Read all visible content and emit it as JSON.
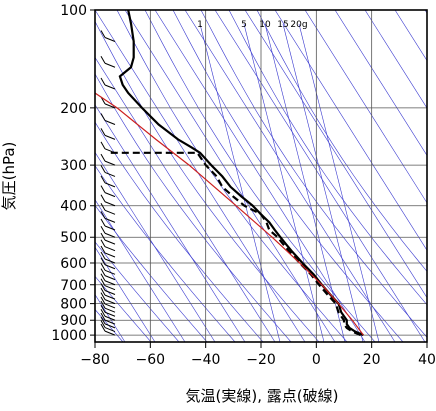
{
  "chart_data": {
    "type": "line",
    "title": "",
    "xlabel": "気温(実線), 露点(破線)",
    "ylabel": "気圧(hPa)",
    "x_axis": {
      "scale": "linear",
      "range": [
        -80,
        40
      ],
      "ticks": [
        -80,
        -60,
        -40,
        -20,
        0,
        20,
        40
      ],
      "tick_labels": [
        "−80",
        "−60",
        "−40",
        "−20",
        "0",
        "20",
        "40"
      ]
    },
    "y_axis": {
      "scale": "log",
      "inverted": true,
      "range": [
        1050,
        100
      ],
      "ticks": [
        100,
        200,
        300,
        400,
        500,
        600,
        700,
        800,
        900,
        1000
      ],
      "tick_labels": [
        "100",
        "200",
        "300",
        "400",
        "500",
        "600",
        "700",
        "800",
        "900",
        "1000"
      ]
    },
    "skew": "skew-T",
    "grid": true,
    "mixing_ratio_labels": [
      "1",
      "5",
      "10",
      "15",
      "20g"
    ],
    "series": [
      {
        "role": "temperature",
        "style": "solid",
        "color": "#000000",
        "points": [
          [
            17,
            1000
          ],
          [
            14,
            975
          ],
          [
            12,
            950
          ],
          [
            11,
            925
          ],
          [
            11,
            900
          ],
          [
            10,
            875
          ],
          [
            9,
            850
          ],
          [
            8,
            800
          ],
          [
            5,
            750
          ],
          [
            2,
            700
          ],
          [
            -1,
            650
          ],
          [
            -5,
            600
          ],
          [
            -9,
            550
          ],
          [
            -11,
            525
          ],
          [
            -13,
            500
          ],
          [
            -15,
            475
          ],
          [
            -17,
            450
          ],
          [
            -20,
            425
          ],
          [
            -23,
            400
          ],
          [
            -27,
            375
          ],
          [
            -31,
            350
          ],
          [
            -34,
            325
          ],
          [
            -38,
            300
          ],
          [
            -42,
            275
          ],
          [
            -45,
            265
          ],
          [
            -50,
            250
          ],
          [
            -57,
            225
          ],
          [
            -63,
            200
          ],
          [
            -68,
            180
          ],
          [
            -70,
            170
          ],
          [
            -71,
            160
          ],
          [
            -67,
            150
          ],
          [
            -66,
            140
          ],
          [
            -66,
            125
          ],
          [
            -67,
            110
          ],
          [
            -68,
            100
          ]
        ]
      },
      {
        "role": "dewpoint",
        "style": "dashed",
        "color": "#000000",
        "points": [
          [
            16,
            1000
          ],
          [
            13,
            975
          ],
          [
            11,
            950
          ],
          [
            10,
            925
          ],
          [
            10,
            900
          ],
          [
            9,
            875
          ],
          [
            8,
            850
          ],
          [
            7,
            800
          ],
          [
            4,
            750
          ],
          [
            1,
            700
          ],
          [
            -2,
            650
          ],
          [
            -6,
            600
          ],
          [
            -10,
            550
          ],
          [
            -12,
            525
          ],
          [
            -14,
            500
          ],
          [
            -17,
            475
          ],
          [
            -18,
            450
          ],
          [
            -20,
            425
          ],
          [
            -26,
            400
          ],
          [
            -30,
            375
          ],
          [
            -34,
            350
          ],
          [
            -36,
            325
          ],
          [
            -40,
            300
          ],
          [
            -43,
            275
          ],
          [
            -75,
            275
          ]
        ]
      },
      {
        "role": "parcel",
        "style": "solid",
        "color": "#cc1f1f",
        "points": [
          [
            17,
            1000
          ],
          [
            13,
            900
          ],
          [
            8,
            800
          ],
          [
            2,
            700
          ],
          [
            -6,
            600
          ],
          [
            -16,
            500
          ],
          [
            -29,
            400
          ],
          [
            -46,
            300
          ],
          [
            -58,
            250
          ],
          [
            -72,
            200
          ],
          [
            -80,
            180
          ]
        ]
      }
    ],
    "wind_barbs": "left side, along 1000–100 hPa"
  }
}
